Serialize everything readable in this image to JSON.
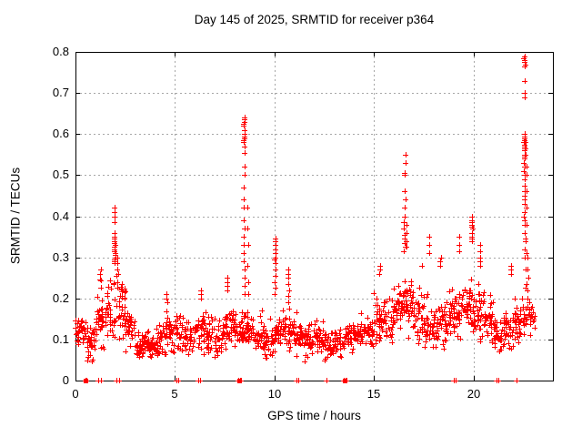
{
  "chart_data": {
    "type": "scatter",
    "title": "Day 145 of 2025, SRMTID for receiver p364",
    "xlabel": "GPS time / hours",
    "ylabel": "SRMTID / TECUs",
    "xlim": [
      0,
      24
    ],
    "ylim": [
      0,
      0.8
    ],
    "xticks": [
      0,
      5,
      10,
      15,
      20
    ],
    "xtick_labels": [
      "0",
      "5",
      "10",
      "15",
      "20"
    ],
    "yticks": [
      0,
      0.1,
      0.2,
      0.3,
      0.4,
      0.5,
      0.6,
      0.7,
      0.8
    ],
    "ytick_labels": [
      "0",
      "0.1",
      "0.2",
      "0.3",
      "0.4",
      "0.5",
      "0.6",
      "0.7",
      "0.8"
    ],
    "grid": true,
    "grid_style": "dashed",
    "grid_color": "#a6a6a6",
    "axis_color": "#000000",
    "legend": "none",
    "marker": {
      "glyph": "plus",
      "size": 7,
      "color": "#ff0000"
    },
    "series_name": "SRMTID",
    "seed": 42,
    "density_bins": [
      [
        0.0,
        0.5,
        0.07,
        0.12,
        0.2,
        34
      ],
      [
        0.5,
        0.5,
        0.04,
        0.09,
        0.15,
        30
      ],
      [
        1.0,
        0.5,
        0.07,
        0.13,
        0.26,
        34
      ],
      [
        1.5,
        0.5,
        0.08,
        0.16,
        0.3,
        36
      ],
      [
        2.0,
        0.5,
        0.09,
        0.18,
        0.33,
        36
      ],
      [
        2.5,
        0.5,
        0.06,
        0.12,
        0.22,
        32
      ],
      [
        3.0,
        0.5,
        0.05,
        0.08,
        0.13,
        34
      ],
      [
        3.5,
        0.5,
        0.05,
        0.08,
        0.13,
        32
      ],
      [
        4.0,
        0.5,
        0.05,
        0.09,
        0.16,
        32
      ],
      [
        4.5,
        0.5,
        0.06,
        0.11,
        0.2,
        34
      ],
      [
        5.0,
        0.5,
        0.06,
        0.11,
        0.18,
        32
      ],
      [
        5.5,
        0.5,
        0.05,
        0.1,
        0.15,
        30
      ],
      [
        6.0,
        0.5,
        0.06,
        0.12,
        0.21,
        34
      ],
      [
        6.5,
        0.5,
        0.06,
        0.11,
        0.17,
        30
      ],
      [
        7.0,
        0.5,
        0.05,
        0.1,
        0.16,
        30
      ],
      [
        7.5,
        0.5,
        0.07,
        0.13,
        0.23,
        34
      ],
      [
        8.0,
        0.5,
        0.06,
        0.11,
        0.2,
        34
      ],
      [
        8.5,
        0.5,
        0.07,
        0.12,
        0.2,
        32
      ],
      [
        9.0,
        0.5,
        0.05,
        0.1,
        0.17,
        32
      ],
      [
        9.5,
        0.5,
        0.05,
        0.09,
        0.15,
        30
      ],
      [
        10.0,
        0.5,
        0.06,
        0.11,
        0.2,
        34
      ],
      [
        10.5,
        0.5,
        0.06,
        0.11,
        0.19,
        32
      ],
      [
        11.0,
        0.5,
        0.05,
        0.1,
        0.18,
        32
      ],
      [
        11.5,
        0.5,
        0.04,
        0.09,
        0.16,
        30
      ],
      [
        12.0,
        0.5,
        0.05,
        0.1,
        0.17,
        32
      ],
      [
        12.5,
        0.5,
        0.04,
        0.08,
        0.14,
        30
      ],
      [
        13.0,
        0.5,
        0.05,
        0.09,
        0.14,
        30
      ],
      [
        13.5,
        0.5,
        0.05,
        0.1,
        0.15,
        30
      ],
      [
        14.0,
        0.5,
        0.07,
        0.11,
        0.17,
        32
      ],
      [
        14.5,
        0.5,
        0.08,
        0.12,
        0.19,
        32
      ],
      [
        15.0,
        0.5,
        0.08,
        0.14,
        0.24,
        34
      ],
      [
        15.5,
        0.5,
        0.08,
        0.14,
        0.23,
        32
      ],
      [
        16.0,
        0.5,
        0.1,
        0.17,
        0.3,
        36
      ],
      [
        16.5,
        0.5,
        0.1,
        0.18,
        0.32,
        36
      ],
      [
        17.0,
        0.5,
        0.08,
        0.15,
        0.28,
        34
      ],
      [
        17.5,
        0.5,
        0.07,
        0.13,
        0.25,
        32
      ],
      [
        18.0,
        0.5,
        0.06,
        0.12,
        0.22,
        32
      ],
      [
        18.5,
        0.5,
        0.08,
        0.14,
        0.27,
        34
      ],
      [
        19.0,
        0.5,
        0.08,
        0.15,
        0.3,
        34
      ],
      [
        19.5,
        0.5,
        0.1,
        0.17,
        0.33,
        36
      ],
      [
        20.0,
        0.5,
        0.09,
        0.16,
        0.3,
        34
      ],
      [
        20.5,
        0.5,
        0.08,
        0.13,
        0.24,
        32
      ],
      [
        21.0,
        0.5,
        0.06,
        0.11,
        0.18,
        32
      ],
      [
        21.5,
        0.5,
        0.07,
        0.12,
        0.2,
        34
      ],
      [
        22.0,
        0.5,
        0.08,
        0.14,
        0.26,
        34
      ],
      [
        22.5,
        0.6,
        0.09,
        0.15,
        0.26,
        30
      ]
    ],
    "outlier_columns": [
      {
        "x": 1.25,
        "ys": [
          0.27,
          0.26,
          0.245
        ]
      },
      {
        "x": 1.97,
        "ys": [
          0.42,
          0.41,
          0.4,
          0.385,
          0.36,
          0.35,
          0.345,
          0.34,
          0.335,
          0.33,
          0.325,
          0.32,
          0.315,
          0.31,
          0.305,
          0.3,
          0.295,
          0.29
        ]
      },
      {
        "x": 2.1,
        "ys": [
          0.3,
          0.285,
          0.27,
          0.255,
          0.24,
          0.225
        ]
      },
      {
        "x": 4.6,
        "ys": [
          0.21,
          0.2,
          0.19
        ]
      },
      {
        "x": 6.3,
        "ys": [
          0.22,
          0.21,
          0.2
        ]
      },
      {
        "x": 7.6,
        "ys": [
          0.25,
          0.24,
          0.23,
          0.22
        ]
      },
      {
        "x": 8.48,
        "ys": [
          0.64,
          0.635,
          0.63,
          0.625,
          0.62,
          0.61,
          0.6,
          0.595,
          0.59,
          0.585,
          0.58,
          0.57,
          0.555,
          0.52,
          0.5,
          0.47,
          0.44,
          0.42,
          0.39,
          0.37,
          0.35,
          0.33,
          0.31,
          0.29,
          0.27,
          0.25,
          0.23,
          0.21
        ]
      },
      {
        "x": 8.65,
        "ys": [
          0.42,
          0.37,
          0.33,
          0.28,
          0.24,
          0.21
        ]
      },
      {
        "x": 10.05,
        "ys": [
          0.345,
          0.34,
          0.33,
          0.32,
          0.31,
          0.3,
          0.295,
          0.285,
          0.27,
          0.255,
          0.24,
          0.225,
          0.21
        ]
      },
      {
        "x": 10.7,
        "ys": [
          0.27,
          0.26,
          0.25,
          0.235,
          0.22,
          0.205,
          0.19
        ]
      },
      {
        "x": 15.3,
        "ys": [
          0.28,
          0.27,
          0.26
        ]
      },
      {
        "x": 16.55,
        "ys": [
          0.55,
          0.53,
          0.505,
          0.5,
          0.46,
          0.44,
          0.42,
          0.4,
          0.385,
          0.37,
          0.355,
          0.345,
          0.335,
          0.325,
          0.315
        ]
      },
      {
        "x": 16.65,
        "ys": [
          0.38,
          0.36,
          0.34,
          0.325
        ]
      },
      {
        "x": 17.8,
        "ys": [
          0.35,
          0.33,
          0.31
        ]
      },
      {
        "x": 18.35,
        "ys": [
          0.3,
          0.29,
          0.28
        ]
      },
      {
        "x": 19.25,
        "ys": [
          0.35,
          0.33,
          0.315
        ]
      },
      {
        "x": 19.95,
        "ys": [
          0.4,
          0.39,
          0.385,
          0.38,
          0.375,
          0.37,
          0.36,
          0.35,
          0.345,
          0.34
        ]
      },
      {
        "x": 20.35,
        "ys": [
          0.33,
          0.315,
          0.3,
          0.29,
          0.28
        ]
      },
      {
        "x": 21.9,
        "ys": [
          0.28,
          0.27,
          0.26
        ]
      },
      {
        "x": 22.58,
        "ys": [
          0.79,
          0.785,
          0.78,
          0.775,
          0.77,
          0.765,
          0.73,
          0.7,
          0.69,
          0.6,
          0.595,
          0.59,
          0.585,
          0.58,
          0.575,
          0.57,
          0.565,
          0.56,
          0.55,
          0.545,
          0.54,
          0.53,
          0.52,
          0.51,
          0.5,
          0.49,
          0.475,
          0.46,
          0.45,
          0.44,
          0.43,
          0.41,
          0.4,
          0.39,
          0.38,
          0.36,
          0.34,
          0.32,
          0.3
        ]
      },
      {
        "x": 22.66,
        "ys": [
          0.58,
          0.565,
          0.55,
          0.52,
          0.5,
          0.46,
          0.42,
          0.38,
          0.345,
          0.31,
          0.27,
          0.235
        ]
      },
      {
        "x": 22.74,
        "ys": [
          0.3,
          0.27,
          0.25,
          0.22,
          0.2
        ]
      }
    ],
    "zero_marks": {
      "xs": [
        0.5,
        0.53,
        1.15,
        1.27,
        2.07,
        2.2,
        5.08,
        5.18,
        6.18,
        6.25,
        8.2,
        8.26,
        8.32,
        11.1,
        11.2,
        12.6,
        13.5,
        13.56,
        13.62,
        19.0,
        19.1,
        21.15,
        21.25,
        22.15
      ],
      "heavy": [
        0.51,
        8.24,
        13.55
      ]
    }
  }
}
